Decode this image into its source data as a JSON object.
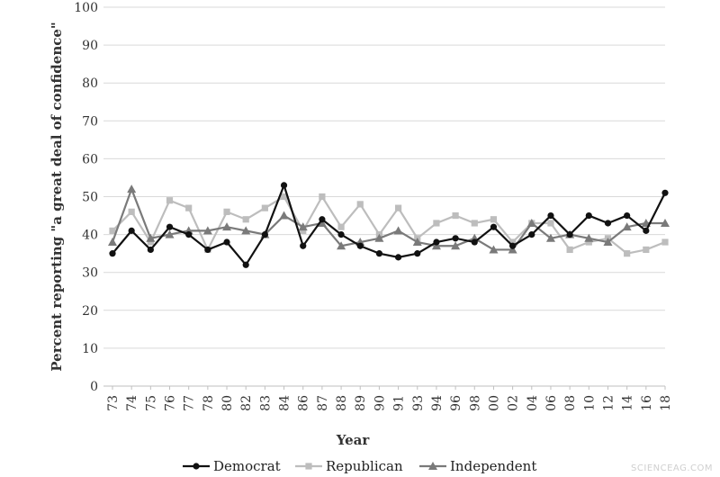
{
  "chart_data": {
    "type": "line",
    "title": "",
    "xlabel": "Year",
    "ylabel": "Percent reporting \"a great deal of confidence\"",
    "ylim": [
      0,
      100
    ],
    "yticks": [
      0,
      10,
      20,
      30,
      40,
      50,
      60,
      70,
      80,
      90,
      100
    ],
    "grid": true,
    "legend_position": "bottom",
    "categories": [
      "73",
      "74",
      "75",
      "76",
      "77",
      "78",
      "80",
      "82",
      "83",
      "84",
      "86",
      "87",
      "88",
      "89",
      "90",
      "91",
      "93",
      "94",
      "96",
      "98",
      "00",
      "02",
      "04",
      "06",
      "08",
      "10",
      "12",
      "14",
      "16",
      "18"
    ],
    "series": [
      {
        "name": "Democrat",
        "color": "#111111",
        "marker": "circle",
        "values": [
          35,
          41,
          36,
          42,
          40,
          36,
          38,
          32,
          40,
          53,
          37,
          44,
          40,
          37,
          35,
          34,
          35,
          38,
          39,
          38,
          42,
          37,
          40,
          45,
          40,
          45,
          43,
          45,
          41,
          51
        ]
      },
      {
        "name": "Republican",
        "color": "#bdbdbd",
        "marker": "square",
        "values": [
          41,
          46,
          38,
          49,
          47,
          36,
          46,
          44,
          47,
          50,
          41,
          50,
          42,
          48,
          40,
          47,
          39,
          43,
          45,
          43,
          44,
          38,
          43,
          43,
          36,
          38,
          39,
          35,
          36,
          38
        ]
      },
      {
        "name": "Independent",
        "color": "#7a7a7a",
        "marker": "triangle",
        "values": [
          38,
          52,
          39,
          40,
          41,
          41,
          42,
          41,
          40,
          45,
          42,
          43,
          37,
          38,
          39,
          41,
          38,
          37,
          37,
          39,
          36,
          36,
          43,
          39,
          40,
          39,
          38,
          42,
          43,
          43
        ]
      }
    ]
  },
  "watermark": "SCIENCEAG.COM"
}
